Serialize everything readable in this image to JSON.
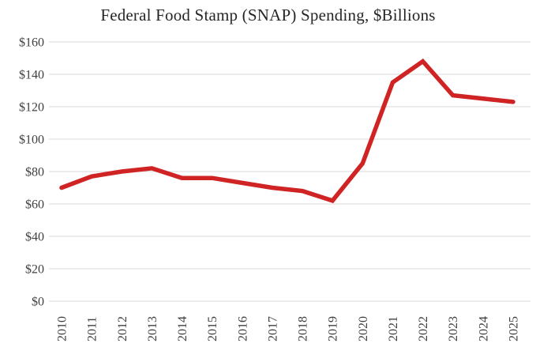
{
  "chart_data": {
    "type": "line",
    "title": "Federal Food Stamp (SNAP) Spending, $Billions",
    "xlabel": "",
    "ylabel": "",
    "categories": [
      "2010",
      "2011",
      "2012",
      "2013",
      "2014",
      "2015",
      "2016",
      "2017",
      "2018",
      "2019",
      "2020",
      "2021",
      "2022",
      "2023",
      "2024",
      "2025"
    ],
    "series": [
      {
        "name": "Federal SNAP spending ($ billions)",
        "values": [
          70,
          77,
          80,
          82,
          76,
          76,
          73,
          70,
          68,
          62,
          85,
          135,
          148,
          127,
          125,
          123
        ]
      }
    ],
    "ylim": [
      0,
      160
    ],
    "y_ticks": [
      {
        "value": 0,
        "label": "$0"
      },
      {
        "value": 20,
        "label": "$20"
      },
      {
        "value": 40,
        "label": "$40"
      },
      {
        "value": 60,
        "label": "$60"
      },
      {
        "value": 80,
        "label": "$80"
      },
      {
        "value": 100,
        "label": "$100"
      },
      {
        "value": 120,
        "label": "$120"
      },
      {
        "value": 140,
        "label": "$140"
      },
      {
        "value": 160,
        "label": "$160"
      }
    ],
    "x_tick_rotation_degrees": 90,
    "grid": "horizontal",
    "legend": "none",
    "colors": {
      "line": "#d02424",
      "gridline": "#d9d9d9",
      "tick_text": "#404040",
      "title_text": "#262626",
      "background": "#ffffff"
    }
  }
}
